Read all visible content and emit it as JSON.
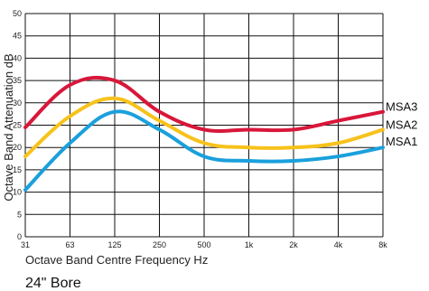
{
  "chart_data": {
    "type": "line",
    "title": "",
    "xlabel": "Octave Band Centre Frequency Hz",
    "ylabel": "Octave Band Attenuation dB",
    "caption": "24\" Bore",
    "categories": [
      "31",
      "63",
      "125",
      "250",
      "500",
      "1k",
      "2k",
      "4k",
      "8k"
    ],
    "ylim": [
      0,
      50
    ],
    "yticks": [
      "0",
      "5",
      "10",
      "15",
      "20",
      "25",
      "30",
      "35",
      "40",
      "45",
      "50"
    ],
    "grid": true,
    "series": [
      {
        "name": "MSA3",
        "color": "#d8173a",
        "values": [
          24.5,
          34,
          35,
          28,
          24,
          24,
          24,
          26,
          28
        ]
      },
      {
        "name": "MSA2",
        "color": "#f7c21b",
        "values": [
          18,
          27,
          31,
          26,
          21,
          20,
          20,
          21,
          24
        ]
      },
      {
        "name": "MSA1",
        "color": "#1aa0dc",
        "values": [
          10.5,
          21,
          28,
          24,
          18,
          17,
          17,
          18,
          20
        ]
      }
    ]
  }
}
